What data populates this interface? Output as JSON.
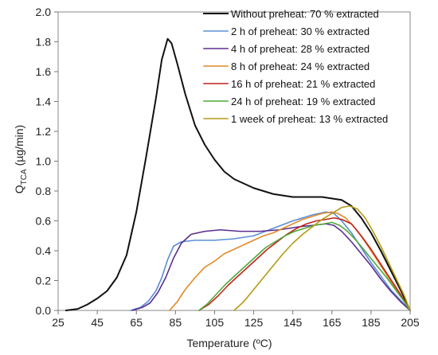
{
  "chart_data": {
    "type": "line",
    "xlabel": "Temperature (ºC)",
    "ylabel": {
      "main": "Q",
      "subscript": "TCA",
      "unit": " (µg/min)"
    },
    "xlim": [
      25,
      205
    ],
    "ylim": [
      0,
      2
    ],
    "x_ticks": [
      "25",
      "45",
      "65",
      "85",
      "105",
      "125",
      "145",
      "165",
      "185",
      "205"
    ],
    "y_ticks": [
      "0.0",
      "0.2",
      "0.4",
      "0.6",
      "0.8",
      "1.0",
      "1.2",
      "1.4",
      "1.6",
      "1.8",
      "2.0"
    ],
    "grid": false,
    "legend_position": "top-right",
    "series": [
      {
        "name": "Without preheat: 70 % extracted",
        "color": "#111111",
        "points": [
          [
            29,
            0
          ],
          [
            35,
            0.01
          ],
          [
            40,
            0.04
          ],
          [
            45,
            0.08
          ],
          [
            50,
            0.13
          ],
          [
            55,
            0.22
          ],
          [
            60,
            0.37
          ],
          [
            65,
            0.66
          ],
          [
            70,
            1.03
          ],
          [
            75,
            1.42
          ],
          [
            78,
            1.68
          ],
          [
            81,
            1.82
          ],
          [
            83,
            1.79
          ],
          [
            86,
            1.65
          ],
          [
            90,
            1.45
          ],
          [
            95,
            1.24
          ],
          [
            100,
            1.11
          ],
          [
            105,
            1.01
          ],
          [
            110,
            0.93
          ],
          [
            115,
            0.88
          ],
          [
            120,
            0.85
          ],
          [
            125,
            0.82
          ],
          [
            130,
            0.8
          ],
          [
            135,
            0.78
          ],
          [
            140,
            0.77
          ],
          [
            145,
            0.76
          ],
          [
            150,
            0.76
          ],
          [
            155,
            0.76
          ],
          [
            160,
            0.76
          ],
          [
            165,
            0.75
          ],
          [
            170,
            0.74
          ],
          [
            175,
            0.7
          ],
          [
            180,
            0.62
          ],
          [
            185,
            0.52
          ],
          [
            190,
            0.4
          ],
          [
            195,
            0.27
          ],
          [
            200,
            0.14
          ],
          [
            205,
            0
          ]
        ]
      },
      {
        "name": "2 h of preheat: 30 % extracted",
        "color": "#5b8ed6",
        "points": [
          [
            62,
            0
          ],
          [
            67,
            0.02
          ],
          [
            71,
            0.06
          ],
          [
            75,
            0.13
          ],
          [
            78,
            0.22
          ],
          [
            81,
            0.34
          ],
          [
            84,
            0.43
          ],
          [
            88,
            0.46
          ],
          [
            95,
            0.47
          ],
          [
            105,
            0.47
          ],
          [
            115,
            0.48
          ],
          [
            125,
            0.5
          ],
          [
            135,
            0.55
          ],
          [
            145,
            0.6
          ],
          [
            155,
            0.64
          ],
          [
            162,
            0.66
          ],
          [
            166,
            0.65
          ],
          [
            170,
            0.6
          ],
          [
            175,
            0.52
          ],
          [
            180,
            0.42
          ],
          [
            185,
            0.32
          ],
          [
            190,
            0.23
          ],
          [
            195,
            0.14
          ],
          [
            200,
            0.07
          ],
          [
            205,
            0
          ]
        ]
      },
      {
        "name": "4 h of preheat: 28 % extracted",
        "color": "#5b2e8f",
        "points": [
          [
            63,
            0
          ],
          [
            68,
            0.02
          ],
          [
            72,
            0.05
          ],
          [
            76,
            0.12
          ],
          [
            80,
            0.22
          ],
          [
            84,
            0.35
          ],
          [
            88,
            0.45
          ],
          [
            93,
            0.51
          ],
          [
            100,
            0.53
          ],
          [
            108,
            0.54
          ],
          [
            118,
            0.53
          ],
          [
            128,
            0.53
          ],
          [
            138,
            0.54
          ],
          [
            148,
            0.56
          ],
          [
            155,
            0.57
          ],
          [
            162,
            0.58
          ],
          [
            166,
            0.57
          ],
          [
            170,
            0.53
          ],
          [
            175,
            0.46
          ],
          [
            180,
            0.38
          ],
          [
            185,
            0.3
          ],
          [
            190,
            0.21
          ],
          [
            195,
            0.13
          ],
          [
            200,
            0.06
          ],
          [
            205,
            0
          ]
        ]
      },
      {
        "name": "8 h of preheat: 24 % extracted",
        "color": "#e08a2c",
        "points": [
          [
            82,
            0
          ],
          [
            86,
            0.06
          ],
          [
            90,
            0.14
          ],
          [
            95,
            0.22
          ],
          [
            100,
            0.29
          ],
          [
            105,
            0.33
          ],
          [
            110,
            0.38
          ],
          [
            115,
            0.41
          ],
          [
            120,
            0.44
          ],
          [
            125,
            0.47
          ],
          [
            130,
            0.5
          ],
          [
            135,
            0.52
          ],
          [
            140,
            0.55
          ],
          [
            145,
            0.58
          ],
          [
            150,
            0.61
          ],
          [
            155,
            0.63
          ],
          [
            160,
            0.65
          ],
          [
            165,
            0.66
          ],
          [
            168,
            0.65
          ],
          [
            172,
            0.62
          ],
          [
            177,
            0.55
          ],
          [
            182,
            0.46
          ],
          [
            187,
            0.36
          ],
          [
            192,
            0.26
          ],
          [
            197,
            0.16
          ],
          [
            201,
            0.08
          ],
          [
            205,
            0
          ]
        ]
      },
      {
        "name": "16 h of preheat: 21 % extracted",
        "color": "#c0241c",
        "points": [
          [
            97,
            0
          ],
          [
            102,
            0.04
          ],
          [
            107,
            0.1
          ],
          [
            112,
            0.17
          ],
          [
            117,
            0.23
          ],
          [
            122,
            0.29
          ],
          [
            127,
            0.35
          ],
          [
            132,
            0.41
          ],
          [
            137,
            0.46
          ],
          [
            142,
            0.51
          ],
          [
            147,
            0.55
          ],
          [
            152,
            0.58
          ],
          [
            157,
            0.6
          ],
          [
            162,
            0.61
          ],
          [
            166,
            0.62
          ],
          [
            170,
            0.61
          ],
          [
            175,
            0.58
          ],
          [
            180,
            0.5
          ],
          [
            185,
            0.41
          ],
          [
            190,
            0.31
          ],
          [
            195,
            0.21
          ],
          [
            200,
            0.11
          ],
          [
            205,
            0
          ]
        ]
      },
      {
        "name": "24 h of preheat: 19 % extracted",
        "color": "#4fa83a",
        "points": [
          [
            97,
            0
          ],
          [
            101,
            0.04
          ],
          [
            106,
            0.11
          ],
          [
            111,
            0.18
          ],
          [
            116,
            0.24
          ],
          [
            121,
            0.3
          ],
          [
            126,
            0.36
          ],
          [
            131,
            0.42
          ],
          [
            136,
            0.46
          ],
          [
            141,
            0.5
          ],
          [
            146,
            0.53
          ],
          [
            151,
            0.55
          ],
          [
            156,
            0.57
          ],
          [
            161,
            0.58
          ],
          [
            165,
            0.59
          ],
          [
            169,
            0.57
          ],
          [
            173,
            0.53
          ],
          [
            178,
            0.46
          ],
          [
            183,
            0.38
          ],
          [
            188,
            0.3
          ],
          [
            193,
            0.22
          ],
          [
            198,
            0.13
          ],
          [
            202,
            0.06
          ],
          [
            205,
            0
          ]
        ]
      },
      {
        "name": "1 week of preheat: 13 % extracted",
        "color": "#b59a14",
        "points": [
          [
            115,
            0
          ],
          [
            120,
            0.06
          ],
          [
            125,
            0.14
          ],
          [
            130,
            0.22
          ],
          [
            135,
            0.3
          ],
          [
            140,
            0.38
          ],
          [
            145,
            0.45
          ],
          [
            150,
            0.51
          ],
          [
            155,
            0.56
          ],
          [
            160,
            0.61
          ],
          [
            165,
            0.65
          ],
          [
            170,
            0.69
          ],
          [
            174,
            0.7
          ],
          [
            178,
            0.68
          ],
          [
            182,
            0.62
          ],
          [
            186,
            0.53
          ],
          [
            190,
            0.43
          ],
          [
            194,
            0.32
          ],
          [
            198,
            0.21
          ],
          [
            202,
            0.1
          ],
          [
            205,
            0
          ]
        ]
      }
    ]
  }
}
